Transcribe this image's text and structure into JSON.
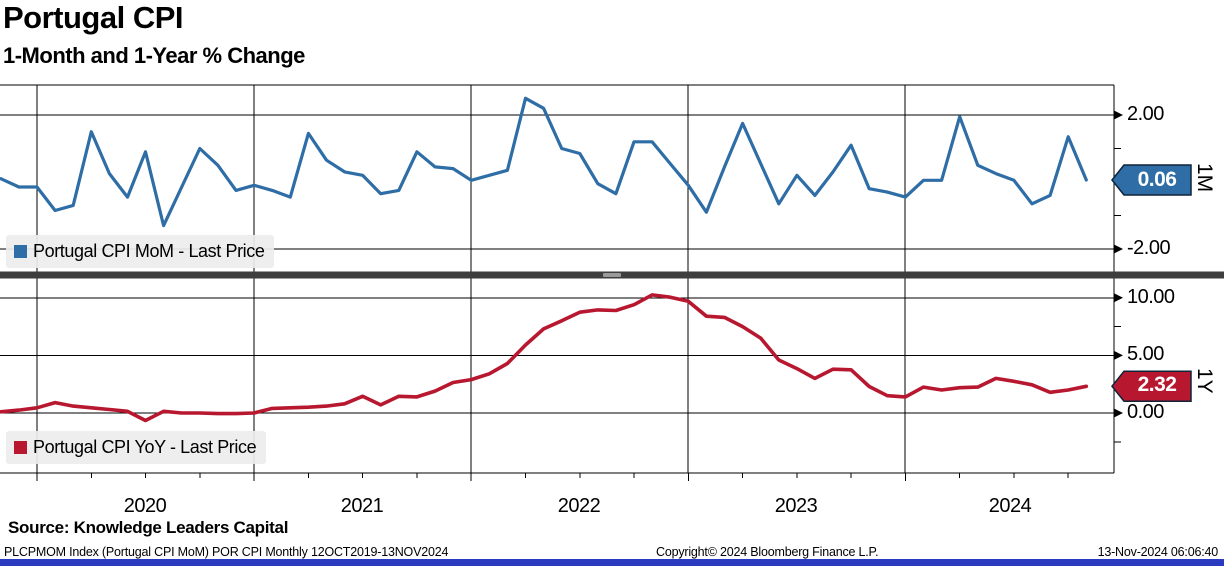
{
  "header": {
    "title": "Portugal CPI",
    "subtitle": "1-Month and 1-Year % Change"
  },
  "footer": {
    "source": "Source: Knowledge Leaders Capital",
    "ticker_info": "PLCPMOM Index (Portugal CPI MoM) POR CPI  Monthly 12OCT2019-13NOV2024",
    "copyright": "Copyright© 2024 Bloomberg Finance L.P.",
    "timestamp": "13-Nov-2024 06:06:40"
  },
  "colors": {
    "mom_line": "#2E6DA5",
    "yoy_line": "#B8182F",
    "grid": "#000000",
    "divider": "#3E3E3E",
    "legend_bg": "#EDEDED",
    "bottom_bar": "#2A3BC0",
    "badge_text": "#FFFFFF"
  },
  "x_axis": {
    "year_labels": [
      "2020",
      "2021",
      "2022",
      "2023",
      "2024"
    ]
  },
  "chart_data": [
    {
      "type": "line",
      "panel": "top",
      "legend": "Portugal CPI MoM - Last Price",
      "axis_label": "1M",
      "last_price": "0.06",
      "color": "#2E6DA5",
      "frequency": "monthly",
      "x_start": "2019-11",
      "x_end": "2024-11",
      "ylim": [
        -2.9,
        2.9
      ],
      "grid": true,
      "yticks": [
        {
          "value": 2,
          "label": "2.00"
        },
        {
          "value": -2,
          "label": "-2.00"
        }
      ],
      "minor_yticks": [
        1,
        -1
      ],
      "values": [
        0.1,
        -0.15,
        -0.15,
        -0.85,
        -0.7,
        1.5,
        0.25,
        -0.45,
        0.9,
        -1.3,
        -0.15,
        1.0,
        0.5,
        -0.25,
        -0.1,
        -0.25,
        -0.45,
        1.45,
        0.65,
        0.3,
        0.2,
        -0.35,
        -0.25,
        0.9,
        0.45,
        0.4,
        0.05,
        0.2,
        0.35,
        2.5,
        2.2,
        1.0,
        0.85,
        -0.05,
        -0.35,
        1.2,
        1.2,
        0.55,
        -0.1,
        -0.9,
        0.45,
        1.75,
        0.55,
        -0.65,
        0.2,
        -0.4,
        0.3,
        1.1,
        -0.2,
        -0.3,
        -0.45,
        0.05,
        0.05,
        1.95,
        0.5,
        0.25,
        0.05,
        -0.65,
        -0.4,
        1.35,
        0.06
      ]
    },
    {
      "type": "line",
      "panel": "bottom",
      "legend": "Portugal CPI YoY - Last Price",
      "axis_label": "1Y",
      "last_price": "2.32",
      "color": "#B8182F",
      "frequency": "monthly",
      "x_start": "2019-11",
      "x_end": "2024-11",
      "ylim": [
        -5.2,
        11.7
      ],
      "grid": true,
      "yticks": [
        {
          "value": 10,
          "label": "10.00"
        },
        {
          "value": 5,
          "label": "5.00"
        },
        {
          "value": 0,
          "label": "0.00"
        }
      ],
      "minor_yticks": [
        7.5,
        -2.5
      ],
      "values": [
        0.1,
        0.25,
        0.45,
        0.9,
        0.6,
        0.45,
        0.3,
        0.15,
        -0.65,
        0.15,
        0.0,
        0.0,
        -0.05,
        -0.05,
        0.0,
        0.4,
        0.45,
        0.5,
        0.6,
        0.8,
        1.45,
        0.7,
        1.45,
        1.4,
        1.9,
        2.65,
        2.9,
        3.4,
        4.3,
        5.9,
        7.3,
        8.0,
        8.75,
        8.95,
        8.9,
        9.4,
        10.25,
        10.05,
        9.7,
        8.4,
        8.3,
        7.5,
        6.5,
        4.6,
        3.85,
        3.0,
        3.8,
        3.75,
        2.3,
        1.5,
        1.4,
        2.25,
        2.0,
        2.2,
        2.25,
        3.0,
        2.75,
        2.45,
        1.8,
        2.0,
        2.32
      ]
    }
  ]
}
